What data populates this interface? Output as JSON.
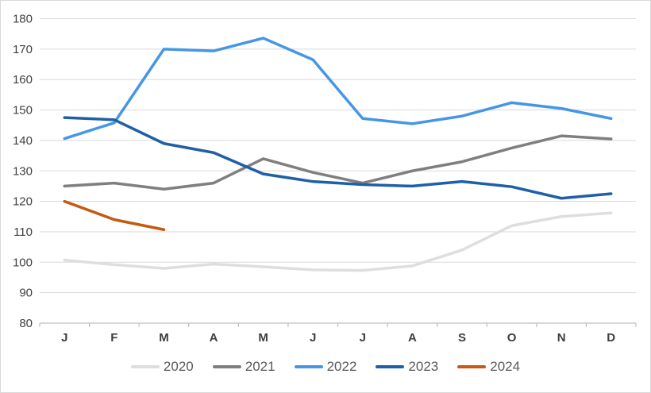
{
  "chart_data": {
    "type": "line",
    "title": "",
    "xlabel": "",
    "ylabel": "",
    "categories": [
      "J",
      "F",
      "M",
      "A",
      "M",
      "J",
      "J",
      "A",
      "S",
      "O",
      "N",
      "D"
    ],
    "ylim": [
      80,
      180
    ],
    "yticks": [
      80,
      90,
      100,
      110,
      120,
      130,
      140,
      150,
      160,
      170,
      180
    ],
    "grid": true,
    "legend_position": "bottom",
    "series": [
      {
        "name": "2020",
        "color": "#dedede",
        "values": [
          100.7,
          99.2,
          98.0,
          99.4,
          98.5,
          97.5,
          97.3,
          98.8,
          104.0,
          112.0,
          115.0,
          116.2
        ]
      },
      {
        "name": "2021",
        "color": "#7f7f7f",
        "values": [
          125.0,
          126.0,
          124.0,
          126.0,
          134.0,
          129.5,
          126.0,
          130.0,
          133.0,
          137.5,
          141.5,
          140.5
        ]
      },
      {
        "name": "2022",
        "color": "#4696e6",
        "values": [
          140.6,
          145.8,
          170.0,
          169.4,
          173.6,
          166.5,
          147.2,
          145.5,
          148.0,
          152.4,
          150.5,
          147.2
        ]
      },
      {
        "name": "2023",
        "color": "#1e5fa8",
        "values": [
          147.5,
          146.8,
          139.0,
          136.0,
          129.0,
          126.5,
          125.5,
          125.0,
          126.5,
          124.8,
          121.0,
          122.5
        ]
      },
      {
        "name": "2024",
        "color": "#c55a11",
        "values": [
          120.0,
          114.0,
          110.7
        ]
      }
    ],
    "axis_colors": {
      "gridline": "#d9d9d9",
      "axis_line": "#bfbfbf",
      "tick_label": "#404040",
      "month_label": "#3d3d3d"
    }
  }
}
